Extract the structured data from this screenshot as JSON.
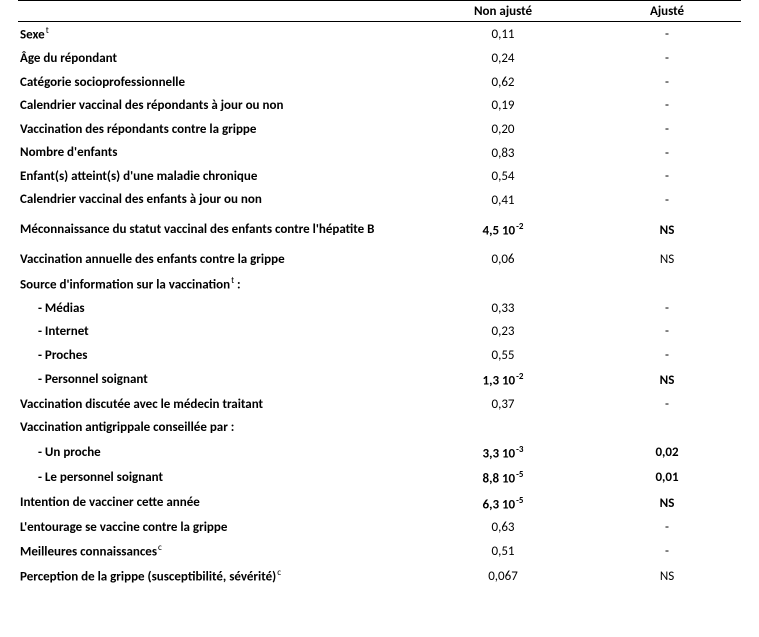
{
  "header": {
    "nonajuste": "Non ajusté",
    "ajuste": "Ajusté"
  },
  "rows": [
    {
      "label": "Sexe",
      "sup": "t",
      "nonaj": "0,11",
      "aj": "-",
      "bold": false,
      "indent": false
    },
    {
      "label": "Âge du répondant",
      "sup": "",
      "nonaj": "0,24",
      "aj": "-",
      "bold": false,
      "indent": false
    },
    {
      "label": "Catégorie socioprofessionnelle",
      "sup": "",
      "nonaj": "0,62",
      "aj": "-",
      "bold": false,
      "indent": false
    },
    {
      "label": "Calendrier vaccinal des répondants à jour ou non",
      "sup": "",
      "nonaj": "0,19",
      "aj": "-",
      "bold": false,
      "indent": false
    },
    {
      "label": "Vaccination des répondants contre la grippe",
      "sup": "",
      "nonaj": "0,20",
      "aj": "-",
      "bold": false,
      "indent": false
    },
    {
      "label": "Nombre d'enfants",
      "sup": "",
      "nonaj": "0,83",
      "aj": "-",
      "bold": false,
      "indent": false
    },
    {
      "label": "Enfant(s) atteint(s) d'une maladie chronique",
      "sup": "",
      "nonaj": "0,54",
      "aj": "-",
      "bold": false,
      "indent": false
    },
    {
      "label": "Calendrier vaccinal des enfants à jour ou non",
      "sup": "",
      "nonaj": "0,41",
      "aj": "-",
      "bold": false,
      "indent": false
    },
    {
      "label": "Méconnaissance du statut vaccinal des enfants contre l'hépatite B",
      "sup": "",
      "nonaj": "4,5 10",
      "exp": "-2",
      "aj": "NS",
      "bold": true,
      "indent": false,
      "twoline": true
    },
    {
      "label": "Vaccination annuelle des enfants contre la grippe",
      "sup": "",
      "nonaj": "0,06",
      "aj": "NS",
      "bold": false,
      "indent": false
    },
    {
      "label": "Source d'information sur la vaccination",
      "sup": "t",
      "suffix": " :",
      "nonaj": "",
      "aj": "",
      "bold": false,
      "indent": false
    },
    {
      "label": "- Médias",
      "sup": "",
      "nonaj": "0,33",
      "aj": "-",
      "bold": false,
      "indent": true
    },
    {
      "label": "- Internet",
      "sup": "",
      "nonaj": "0,23",
      "aj": "-",
      "bold": false,
      "indent": true
    },
    {
      "label": "- Proches",
      "sup": "",
      "nonaj": "0,55",
      "aj": "-",
      "bold": false,
      "indent": true
    },
    {
      "label": "- Personnel soignant",
      "sup": "",
      "nonaj": "1,3 10",
      "exp": "-2",
      "aj": "NS",
      "bold": true,
      "indent": true
    },
    {
      "label": "Vaccination discutée avec le médecin traitant",
      "sup": "",
      "nonaj": "0,37",
      "aj": "-",
      "bold": false,
      "indent": false
    },
    {
      "label": "Vaccination antigrippale conseillée par :",
      "sup": "",
      "nonaj": "",
      "aj": "",
      "bold": false,
      "indent": false
    },
    {
      "label": "- Un proche",
      "sup": "",
      "nonaj": "3,3 10",
      "exp": "-3",
      "aj": "0,02",
      "bold": true,
      "ajbold": true,
      "indent": true
    },
    {
      "label": "- Le personnel soignant",
      "sup": "",
      "nonaj": "8,8 10",
      "exp": "-5",
      "aj": "0,01",
      "bold": true,
      "ajbold": true,
      "indent": true
    },
    {
      "label": "Intention de vacciner cette année",
      "sup": "",
      "nonaj": "6,3 10",
      "exp": "-5",
      "aj": "NS",
      "bold": true,
      "indent": false
    },
    {
      "label": "L'entourage se vaccine contre la grippe",
      "sup": "",
      "nonaj": "0,63",
      "aj": "-",
      "bold": false,
      "indent": false
    },
    {
      "label": "Meilleures connaissances",
      "sup": "c",
      "nonaj": "0,51",
      "aj": "-",
      "bold": false,
      "indent": false
    },
    {
      "label": "Perception de la grippe (susceptibilité, sévérité)",
      "sup": "c",
      "nonaj": "0,067",
      "aj": "NS",
      "bold": false,
      "indent": false
    }
  ]
}
